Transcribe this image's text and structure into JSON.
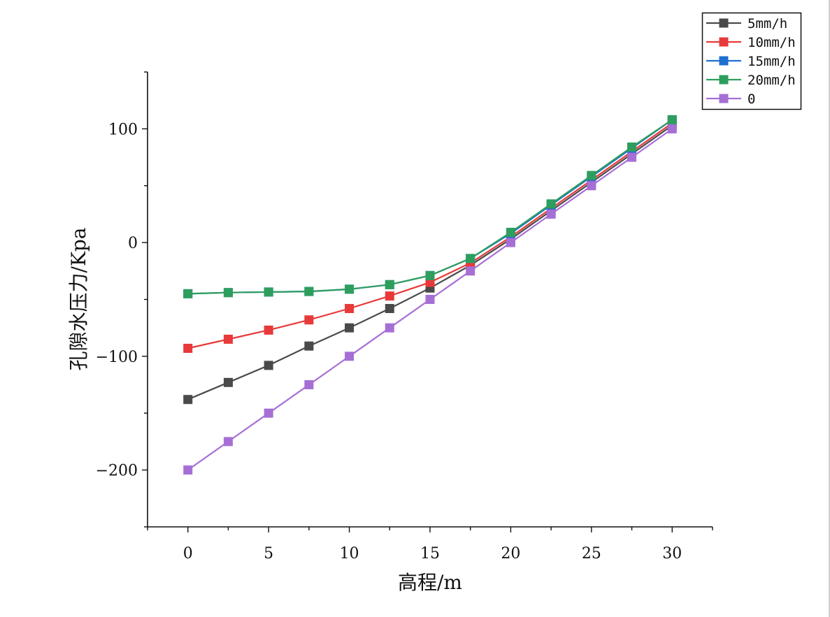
{
  "chart_data": {
    "type": "line",
    "title": "",
    "xlabel": "高程/m",
    "ylabel": "孔隙水压力/Kpa",
    "xlim": [
      -2.5,
      32.5
    ],
    "ylim": [
      -250,
      150
    ],
    "xticks": [
      0,
      5,
      10,
      15,
      20,
      25,
      30
    ],
    "yticks": [
      -200,
      -100,
      0,
      100
    ],
    "xtick_labels": [
      "0",
      "5",
      "10",
      "15",
      "20",
      "25",
      "30"
    ],
    "ytick_labels": [
      "−200",
      "−100",
      "0",
      "100"
    ],
    "marker": "square",
    "grid": false,
    "legend_position": "top-right",
    "x": [
      0,
      2.5,
      5,
      7.5,
      10,
      12.5,
      15,
      17.5,
      20,
      22.5,
      25,
      27.5,
      30
    ],
    "series": [
      {
        "name": "5mm/h",
        "color": "#4a4a4a",
        "values": [
          -138,
          -123,
          -108,
          -91,
          -75,
          -58,
          -40,
          -20,
          3,
          28,
          53,
          78,
          103
        ]
      },
      {
        "name": "10mm/h",
        "color": "#e83a3a",
        "values": [
          -93,
          -85,
          -77,
          -68,
          -58,
          -47,
          -35,
          -18,
          5,
          30,
          55,
          80,
          105
        ]
      },
      {
        "name": "15mm/h",
        "color": "#1f6fd1",
        "values": [
          -45,
          -44,
          -43.5,
          -43,
          -41,
          -37,
          -29,
          -14,
          8,
          33,
          58,
          83,
          108
        ]
      },
      {
        "name": "20mm/h",
        "color": "#2e9e5e",
        "values": [
          -45,
          -44,
          -43.5,
          -43,
          -41,
          -37,
          -29,
          -14,
          9,
          34,
          59,
          84,
          108
        ]
      },
      {
        "name": "0",
        "color": "#a66fd6",
        "values": [
          -200,
          -175,
          -150,
          -125,
          -100,
          -75,
          -50,
          -25,
          0,
          25,
          50,
          75,
          100
        ]
      }
    ]
  }
}
